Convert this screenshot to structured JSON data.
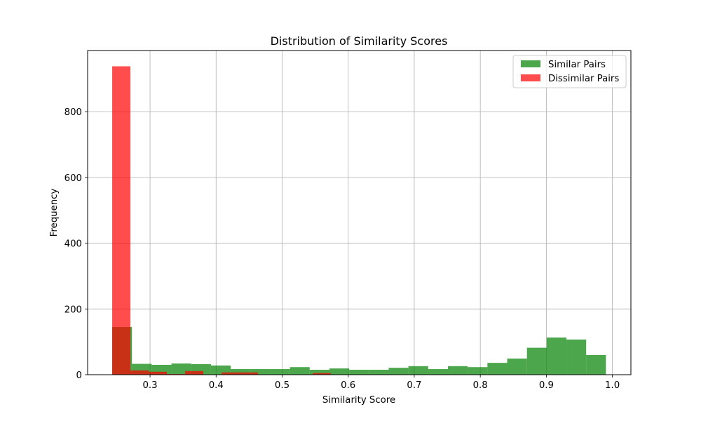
{
  "chart_data": {
    "type": "bar",
    "subtype": "overlapping-histogram",
    "title": "Distribution of Similarity Scores",
    "xlabel": "Similarity Score",
    "ylabel": "Frequency",
    "xlim": [
      0.2055,
      1.028
    ],
    "ylim": [
      0,
      986
    ],
    "xticks": [
      0.3,
      0.4,
      0.5,
      0.6,
      0.7,
      0.8,
      0.9,
      1.0
    ],
    "xtick_labels": [
      "0.3",
      "0.4",
      "0.5",
      "0.6",
      "0.7",
      "0.8",
      "0.9",
      "1.0"
    ],
    "yticks": [
      0,
      200,
      400,
      600,
      800
    ],
    "ytick_labels": [
      "0",
      "200",
      "400",
      "600",
      "800"
    ],
    "grid": true,
    "legend_position": "upper right",
    "series": [
      {
        "name": "Similar Pairs",
        "color": "#008000",
        "alpha": 0.7,
        "bin_start": 0.2427,
        "bin_width": 0.0299,
        "values": [
          145,
          33,
          30,
          34,
          32,
          28,
          17,
          17,
          17,
          23,
          15,
          19,
          15,
          15,
          21,
          26,
          17,
          26,
          23,
          36,
          49,
          82,
          113,
          107,
          60
        ]
      },
      {
        "name": "Dissimilar Pairs",
        "color": "#ff0000",
        "alpha": 0.7,
        "bin_start": 0.2427,
        "bin_width": 0.0276,
        "values": [
          938,
          13,
          9,
          2,
          11,
          1,
          7,
          7,
          0,
          0,
          0,
          5
        ]
      }
    ]
  }
}
